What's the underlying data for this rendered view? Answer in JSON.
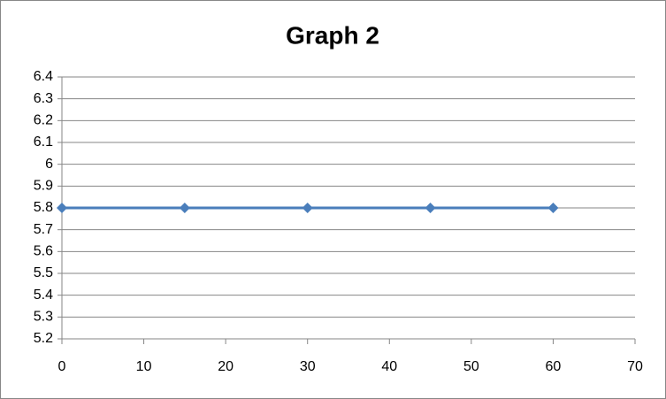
{
  "chart_data": {
    "type": "line",
    "title": "Graph 2",
    "x": [
      0,
      15,
      30,
      45,
      60
    ],
    "series": [
      {
        "color": "#4a7ebb",
        "values": [
          5.8,
          5.8,
          5.8,
          5.8,
          5.8
        ]
      }
    ],
    "xlim": [
      0,
      70
    ],
    "xticks": [
      0,
      10,
      20,
      30,
      40,
      50,
      60,
      70
    ],
    "ylim": [
      5.2,
      6.4
    ],
    "yticks": [
      5.2,
      5.3,
      5.4,
      5.5,
      5.6,
      5.7,
      5.8,
      5.9,
      6,
      6.1,
      6.2,
      6.3,
      6.4
    ],
    "grid": true,
    "marker": "diamond"
  }
}
